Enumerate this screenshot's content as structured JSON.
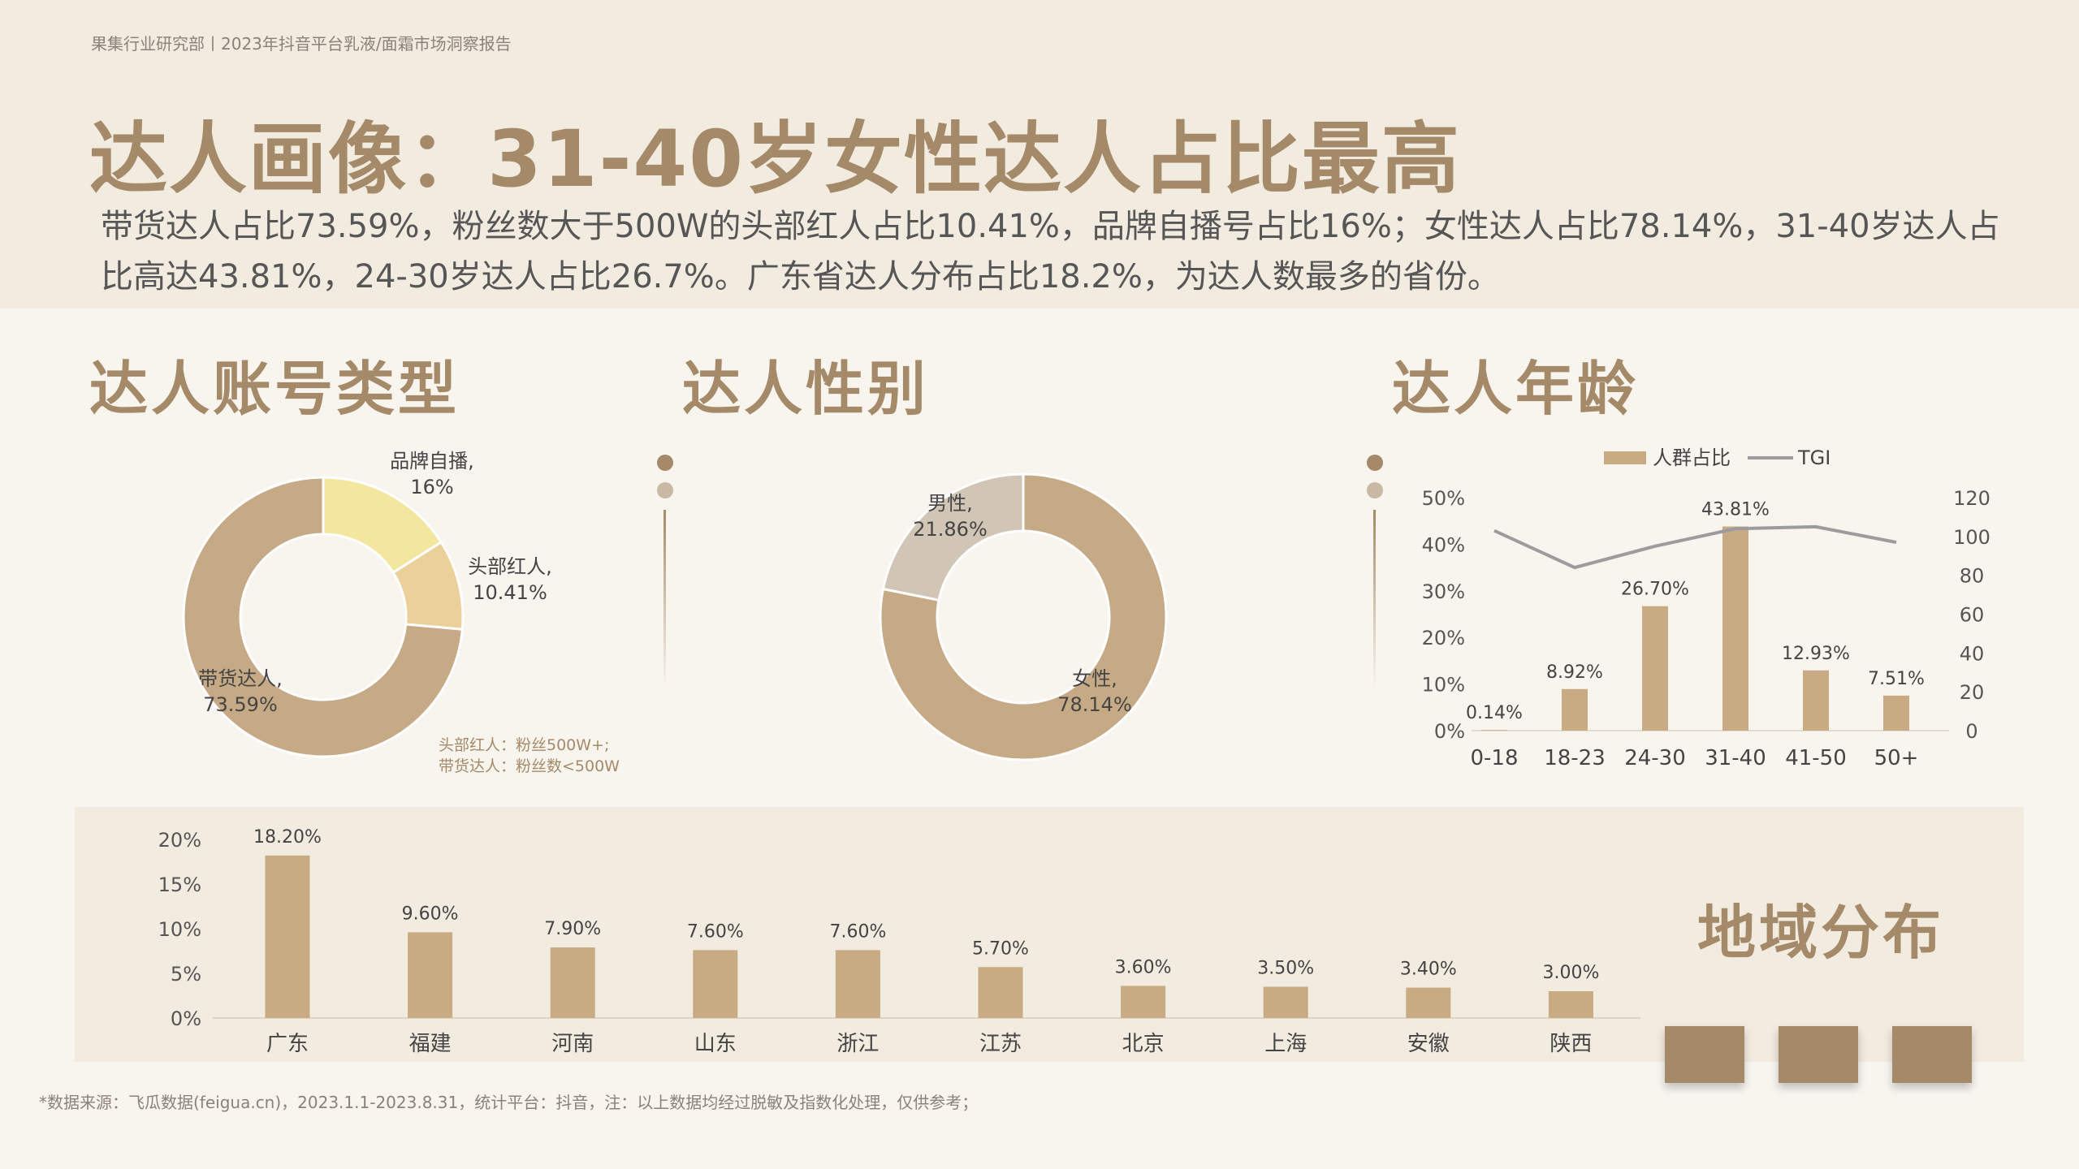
{
  "header_note": "果集行业研究部丨2023年抖音平台乳液/面霜市场洞察报告",
  "title": "达人画像：31-40岁女性达人占比最高",
  "summary": "带货达人占比73.59%，粉丝数大于500W的头部红人占比10.41%，品牌自播号占比16%；女性达人占比78.14%，31-40岁达人占比高达43.81%，24-30岁达人占比26.7%。广东省达人分布占比18.2%，为达人数最多的省份。",
  "sections": {
    "account_type": "达人账号类型",
    "gender": "达人性别",
    "age": "达人年龄",
    "region": "地域分布"
  },
  "account_note": [
    "头部红人：粉丝500W+;",
    "带货达人：粉丝数<500W"
  ],
  "footnote": "*数据来源：飞瓜数据(feigua.cn)，2023.1.1-2023.8.31，统计平台：抖音，注：以上数据均经过脱敏及指数化处理，仅供参考；",
  "colors": {
    "accent": "#a48a68",
    "bar": "#c8aa83",
    "donut_main": "#c6aa85",
    "yellow": "#f3e7a0",
    "light_tan": "#ecd09a",
    "grey_tan": "#d1c5b6",
    "line": "#9c9c9c"
  },
  "chart_data": [
    {
      "type": "pie",
      "slices": [
        {
          "label": "品牌自播",
          "value": 16,
          "text": "16%"
        },
        {
          "label": "头部红人",
          "value": 10.41,
          "text": "10.41%"
        },
        {
          "label": "带货达人",
          "value": 73.59,
          "text": "73.59%"
        }
      ]
    },
    {
      "type": "pie",
      "slices": [
        {
          "label": "女性",
          "value": 78.14,
          "text": "78.14%"
        },
        {
          "label": "男性",
          "value": 21.86,
          "text": "21.86%"
        }
      ]
    },
    {
      "type": "bar",
      "categories": [
        "0-18",
        "18-23",
        "24-30",
        "31-40",
        "41-50",
        "50+"
      ],
      "series": [
        {
          "name": "人群占比",
          "type": "bar",
          "axis": "left",
          "values": [
            0.14,
            8.92,
            26.7,
            43.81,
            12.93,
            7.51
          ],
          "labels": [
            "0.14%",
            "8.92%",
            "26.70%",
            "43.81%",
            "12.93%",
            "7.51%"
          ]
        },
        {
          "name": "TGI",
          "type": "line",
          "axis": "right",
          "values": [
            103,
            84,
            95,
            104,
            105,
            97
          ]
        }
      ],
      "ylim": [
        0,
        50
      ],
      "yticks": [
        "0%",
        "10%",
        "20%",
        "30%",
        "40%",
        "50%"
      ],
      "y2lim": [
        0,
        120
      ],
      "y2ticks": [
        "0",
        "20",
        "40",
        "60",
        "80",
        "100",
        "120"
      ],
      "legend": "top"
    },
    {
      "type": "bar",
      "categories": [
        "广东",
        "福建",
        "河南",
        "山东",
        "浙江",
        "江苏",
        "北京",
        "上海",
        "安徽",
        "陕西"
      ],
      "values": [
        18.2,
        9.6,
        7.9,
        7.6,
        7.6,
        5.7,
        3.6,
        3.5,
        3.4,
        3.0
      ],
      "labels": [
        "18.20%",
        "9.60%",
        "7.90%",
        "7.60%",
        "7.60%",
        "5.70%",
        "3.60%",
        "3.50%",
        "3.40%",
        "3.00%"
      ],
      "ylim": [
        0,
        20
      ],
      "yticks": [
        "0%",
        "5%",
        "10%",
        "15%",
        "20%"
      ]
    }
  ]
}
